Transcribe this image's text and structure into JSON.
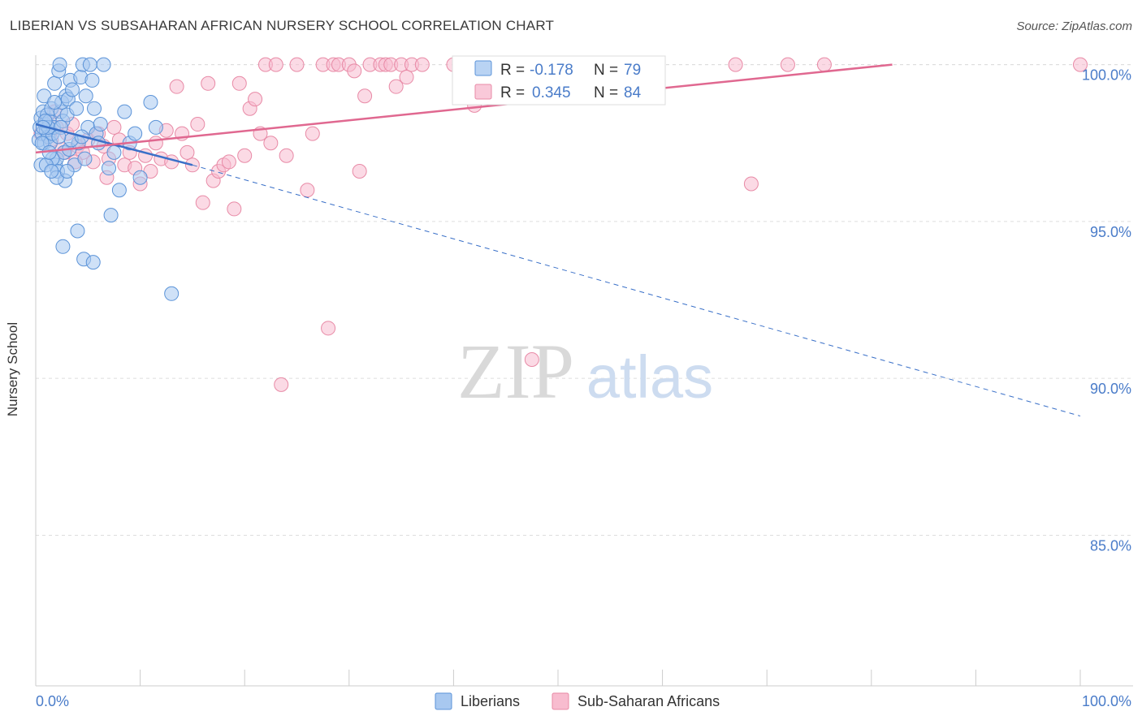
{
  "title": "LIBERIAN VS SUBSAHARAN AFRICAN NURSERY SCHOOL CORRELATION CHART",
  "source": "Source: ZipAtlas.com",
  "watermark": {
    "zip": "ZIP",
    "atlas": "atlas"
  },
  "colors": {
    "blue_fill": "#a8c8f0",
    "blue_stroke": "#5b93d8",
    "blue_line": "#3a70c8",
    "pink_fill": "#f8bccf",
    "pink_stroke": "#e88aa6",
    "pink_line": "#e06890",
    "axis_text": "#4a7cc9",
    "grid": "#dddddd"
  },
  "legend": {
    "rows": [
      {
        "r_label": "R =",
        "r_value": "-0.178",
        "n_label": "N =",
        "n_value": "79"
      },
      {
        "r_label": "R =",
        "r_value": "0.345",
        "n_label": "N =",
        "n_value": "84"
      }
    ]
  },
  "bottom_legend": {
    "series1": "Liberians",
    "series2": "Sub-Saharan Africans"
  },
  "chart_data": {
    "type": "scatter",
    "xlabel": "",
    "ylabel": "Nursery School",
    "xlim": [
      0,
      100
    ],
    "ylim": [
      80.2,
      100.3
    ],
    "x_tick_labels": [
      "0.0%",
      "100.0%"
    ],
    "y_ticks": [
      85,
      90,
      95,
      100
    ],
    "y_tick_labels": [
      "85.0%",
      "90.0%",
      "95.0%",
      "100.0%"
    ],
    "grid": true,
    "series": [
      {
        "name": "Liberians",
        "r": -0.178,
        "n": 79,
        "trend": {
          "x0": 0,
          "y0": 98.1,
          "x1": 15,
          "y1": 96.8,
          "dashed_to_x": 100,
          "dashed_to_y": 88.8
        },
        "points": [
          [
            0.3,
            97.6
          ],
          [
            0.4,
            98.0
          ],
          [
            0.5,
            98.3
          ],
          [
            0.6,
            97.8
          ],
          [
            0.7,
            98.5
          ],
          [
            0.8,
            97.5
          ],
          [
            0.9,
            98.1
          ],
          [
            1.0,
            97.9
          ],
          [
            1.1,
            98.4
          ],
          [
            1.2,
            97.7
          ],
          [
            1.3,
            98.2
          ],
          [
            1.4,
            97.5
          ],
          [
            1.5,
            98.6
          ],
          [
            1.6,
            97.8
          ],
          [
            1.7,
            98.0
          ],
          [
            1.8,
            99.4
          ],
          [
            1.9,
            96.8
          ],
          [
            2.0,
            97.0
          ],
          [
            2.1,
            96.6
          ],
          [
            2.2,
            99.8
          ],
          [
            2.3,
            100.0
          ],
          [
            2.4,
            98.5
          ],
          [
            2.5,
            98.8
          ],
          [
            2.6,
            98.2
          ],
          [
            2.7,
            97.2
          ],
          [
            2.8,
            96.3
          ],
          [
            2.9,
            99.0
          ],
          [
            3.0,
            98.4
          ],
          [
            3.1,
            98.9
          ],
          [
            3.2,
            97.3
          ],
          [
            3.3,
            99.5
          ],
          [
            3.5,
            99.2
          ],
          [
            3.7,
            96.8
          ],
          [
            3.9,
            98.6
          ],
          [
            4.1,
            97.5
          ],
          [
            4.3,
            99.6
          ],
          [
            4.5,
            100.0
          ],
          [
            4.7,
            97.0
          ],
          [
            4.8,
            99.0
          ],
          [
            5.0,
            98.0
          ],
          [
            5.2,
            100.0
          ],
          [
            5.4,
            99.5
          ],
          [
            5.6,
            98.6
          ],
          [
            5.8,
            97.8
          ],
          [
            6.0,
            97.5
          ],
          [
            6.5,
            100.0
          ],
          [
            7.0,
            96.7
          ],
          [
            7.5,
            97.2
          ],
          [
            8.0,
            96.0
          ],
          [
            8.5,
            98.5
          ],
          [
            9.0,
            97.5
          ],
          [
            9.5,
            97.8
          ],
          [
            10.0,
            96.4
          ],
          [
            11.0,
            98.8
          ],
          [
            11.5,
            98.0
          ],
          [
            13.0,
            92.7
          ],
          [
            0.5,
            96.8
          ],
          [
            0.8,
            99.0
          ],
          [
            1.2,
            98.0
          ],
          [
            1.6,
            97.0
          ],
          [
            2.0,
            96.4
          ],
          [
            2.4,
            98.0
          ],
          [
            3.0,
            96.6
          ],
          [
            4.0,
            94.7
          ],
          [
            4.6,
            93.8
          ],
          [
            5.5,
            93.7
          ],
          [
            7.2,
            95.2
          ],
          [
            2.6,
            94.2
          ],
          [
            1.0,
            96.8
          ],
          [
            0.6,
            97.5
          ],
          [
            1.8,
            98.8
          ],
          [
            3.4,
            97.6
          ],
          [
            2.2,
            97.7
          ],
          [
            0.9,
            98.2
          ],
          [
            1.3,
            97.2
          ],
          [
            4.4,
            97.7
          ],
          [
            6.2,
            98.1
          ],
          [
            0.7,
            98.0
          ],
          [
            1.5,
            96.6
          ]
        ]
      },
      {
        "name": "Sub-Saharan Africans",
        "r": 0.345,
        "n": 84,
        "trend": {
          "x0": 0,
          "y0": 97.2,
          "x1": 82,
          "y1": 100.0
        },
        "points": [
          [
            0.5,
            97.8
          ],
          [
            1.0,
            98.2
          ],
          [
            1.5,
            97.6
          ],
          [
            2.0,
            98.0
          ],
          [
            2.5,
            97.3
          ],
          [
            3.0,
            97.8
          ],
          [
            3.5,
            98.1
          ],
          [
            4.0,
            97.4
          ],
          [
            4.5,
            97.2
          ],
          [
            5.0,
            97.6
          ],
          [
            5.5,
            96.9
          ],
          [
            6.0,
            97.8
          ],
          [
            6.5,
            97.4
          ],
          [
            7.0,
            97.0
          ],
          [
            7.5,
            98.0
          ],
          [
            8.0,
            97.6
          ],
          [
            8.5,
            96.8
          ],
          [
            9.0,
            97.2
          ],
          [
            9.5,
            96.7
          ],
          [
            10.0,
            96.2
          ],
          [
            10.5,
            97.1
          ],
          [
            11.0,
            96.6
          ],
          [
            11.5,
            97.5
          ],
          [
            12.0,
            97.0
          ],
          [
            12.5,
            97.9
          ],
          [
            13.0,
            96.9
          ],
          [
            14.0,
            97.8
          ],
          [
            14.5,
            97.2
          ],
          [
            15.0,
            96.8
          ],
          [
            15.5,
            98.1
          ],
          [
            16.0,
            95.6
          ],
          [
            16.5,
            99.4
          ],
          [
            17.0,
            96.3
          ],
          [
            17.5,
            96.6
          ],
          [
            18.0,
            96.8
          ],
          [
            18.5,
            96.9
          ],
          [
            19.0,
            95.4
          ],
          [
            19.5,
            99.4
          ],
          [
            20.0,
            97.1
          ],
          [
            20.5,
            98.6
          ],
          [
            21.0,
            98.9
          ],
          [
            21.5,
            97.8
          ],
          [
            22.0,
            100.0
          ],
          [
            22.5,
            97.5
          ],
          [
            23.0,
            100.0
          ],
          [
            23.5,
            89.8
          ],
          [
            24.0,
            97.1
          ],
          [
            25.0,
            100.0
          ],
          [
            26.0,
            96.0
          ],
          [
            26.5,
            97.8
          ],
          [
            27.5,
            100.0
          ],
          [
            28.0,
            91.6
          ],
          [
            28.5,
            100.0
          ],
          [
            29.0,
            100.0
          ],
          [
            30.0,
            100.0
          ],
          [
            30.5,
            99.8
          ],
          [
            31.0,
            96.6
          ],
          [
            31.5,
            99.0
          ],
          [
            32.0,
            100.0
          ],
          [
            33.0,
            100.0
          ],
          [
            33.5,
            100.0
          ],
          [
            34.0,
            100.0
          ],
          [
            34.5,
            99.3
          ],
          [
            35.0,
            100.0
          ],
          [
            35.5,
            99.6
          ],
          [
            36.0,
            100.0
          ],
          [
            37.0,
            100.0
          ],
          [
            40.0,
            100.0
          ],
          [
            41.0,
            99.2
          ],
          [
            42.0,
            98.7
          ],
          [
            47.0,
            100.0
          ],
          [
            47.5,
            90.6
          ],
          [
            49.0,
            100.0
          ],
          [
            58.0,
            100.0
          ],
          [
            67.0,
            100.0
          ],
          [
            68.5,
            96.2
          ],
          [
            72.0,
            100.0
          ],
          [
            75.5,
            100.0
          ],
          [
            100.0,
            100.0
          ],
          [
            3.8,
            96.9
          ],
          [
            2.8,
            97.2
          ],
          [
            1.8,
            98.5
          ],
          [
            6.8,
            96.4
          ],
          [
            13.5,
            99.3
          ]
        ]
      }
    ]
  }
}
